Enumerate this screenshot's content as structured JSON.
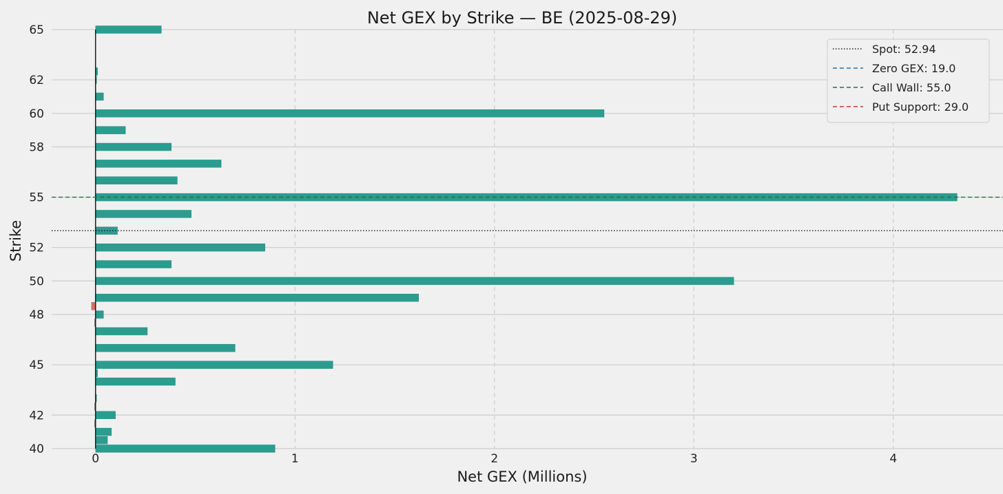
{
  "chart_data": {
    "type": "bar",
    "orientation": "horizontal",
    "title": "Net GEX by Strike — BE  (2025-08-29)",
    "xlabel": "Net GEX (Millions)",
    "ylabel": "Strike",
    "xlim": [
      -0.22,
      4.55
    ],
    "ylim": [
      40,
      65
    ],
    "x_ticks": [
      0,
      1,
      2,
      3,
      4
    ],
    "y_ticks": [
      40,
      42,
      45,
      48,
      50,
      52,
      55,
      58,
      60,
      62,
      65
    ],
    "grid": {
      "x": "dashed",
      "y": "solid"
    },
    "colors": {
      "positive": "#2a9d8f",
      "negative": "#d9705a",
      "background": "#f0f0f0",
      "grid": "#cccccc"
    },
    "bars": [
      {
        "strike": 40.0,
        "value": 0.9
      },
      {
        "strike": 40.5,
        "value": 0.06
      },
      {
        "strike": 41.0,
        "value": 0.08
      },
      {
        "strike": 41.5,
        "value": -0.005
      },
      {
        "strike": 42.0,
        "value": 0.1
      },
      {
        "strike": 42.5,
        "value": -0.005
      },
      {
        "strike": 43.0,
        "value": 0.005
      },
      {
        "strike": 44.0,
        "value": 0.4
      },
      {
        "strike": 44.5,
        "value": 0.01
      },
      {
        "strike": 45.0,
        "value": 1.19
      },
      {
        "strike": 46.0,
        "value": 0.7
      },
      {
        "strike": 47.0,
        "value": 0.26
      },
      {
        "strike": 47.5,
        "value": -0.005
      },
      {
        "strike": 48.0,
        "value": 0.04
      },
      {
        "strike": 48.5,
        "value": -0.02
      },
      {
        "strike": 49.0,
        "value": 1.62
      },
      {
        "strike": 50.0,
        "value": 3.2
      },
      {
        "strike": 51.0,
        "value": 0.38
      },
      {
        "strike": 52.0,
        "value": 0.85
      },
      {
        "strike": 53.0,
        "value": 0.11
      },
      {
        "strike": 54.0,
        "value": 0.48
      },
      {
        "strike": 55.0,
        "value": 4.32
      },
      {
        "strike": 56.0,
        "value": 0.41
      },
      {
        "strike": 57.0,
        "value": 0.63
      },
      {
        "strike": 58.0,
        "value": 0.38
      },
      {
        "strike": 59.0,
        "value": 0.15
      },
      {
        "strike": 60.0,
        "value": 2.55
      },
      {
        "strike": 61.0,
        "value": 0.04
      },
      {
        "strike": 62.0,
        "value": 0.005
      },
      {
        "strike": 62.5,
        "value": 0.01
      },
      {
        "strike": 65.0,
        "value": 0.33
      }
    ],
    "reference_lines": [
      {
        "label": "Spot: 52.94",
        "y": 53.0,
        "style": "dotted",
        "color": "#1a1a1a"
      },
      {
        "label": "Call Wall: 55.0",
        "y": 55.0,
        "style": "dashed",
        "color": "#2d6a3e"
      }
    ],
    "legend": {
      "placement": "top-right",
      "entries": [
        {
          "label": "Spot: 52.94",
          "style": "dotted",
          "color": "#1a1a1a"
        },
        {
          "label": "Zero GEX: 19.0",
          "style": "dashed",
          "color": "#2c6fad"
        },
        {
          "label": "Call Wall: 55.0",
          "style": "dashed",
          "color": "#2d6a3e"
        },
        {
          "label": "Put Support: 29.0",
          "style": "dashed",
          "color": "#c0392b"
        }
      ]
    }
  }
}
